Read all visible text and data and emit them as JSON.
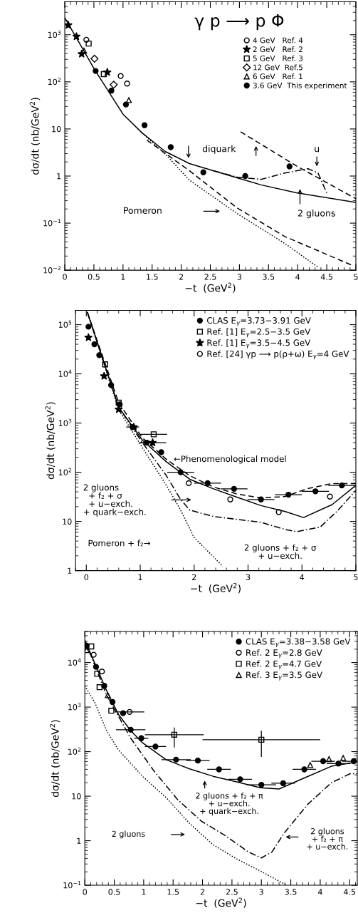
{
  "chart_data": [
    {
      "type": "scatter",
      "xlabel": "−t  (GeV$^{2}$)",
      "ylabel": "dσ/dt (nb/GeV$^{2}$)",
      "log": "y",
      "xlim": [
        0,
        5
      ],
      "ylim": [
        0.01,
        5000
      ],
      "xticks": [
        0,
        0.5,
        1,
        1.5,
        2,
        2.5,
        3,
        3.5,
        4,
        4.5,
        5
      ],
      "yticks": [
        {
          "value": 0.01,
          "label": "10$^{−2}$"
        },
        {
          "value": 0.1,
          "label": "10$^{−1}$"
        },
        1,
        10,
        {
          "value": 100,
          "label": "10$^{2}$"
        },
        {
          "value": 1000,
          "label": "10$^{3}$"
        }
      ],
      "legend": "top right",
      "grid": false,
      "annotations": [
        "γ p ⟶ p Φ",
        "diquark",
        "u",
        "Pomeron",
        "2 gluons"
      ],
      "series": [
        {
          "name": "4 GeV   Ref. 4",
          "marker": "circle",
          "color": "#000000",
          "x": [
            0.37,
            0.96,
            1.07
          ],
          "values": [
            780,
            133,
            92
          ]
        },
        {
          "name": "2 GeV   Ref. 2",
          "marker": "star",
          "color": "#000000",
          "x": [
            0.06,
            0.2,
            0.29,
            0.73
          ],
          "values": [
            1600,
            920,
            390,
            160
          ]
        },
        {
          "name": "5 GeV   Ref. 3",
          "marker": "square",
          "color": "#000000",
          "x": [
            0.41,
            0.67
          ],
          "values": [
            650,
            146
          ]
        },
        {
          "name": "12 GeV  Ref.5",
          "marker": "diamond",
          "color": "#000000",
          "x": [
            0.51,
            0.84
          ],
          "values": [
            310,
            87
          ]
        },
        {
          "name": "6 GeV   Ref. 1",
          "marker": "triangle",
          "color": "#000000",
          "x": [
            0.33,
            1.1
          ],
          "values": [
            460,
            41
          ]
        },
        {
          "name": "3.6 GeV  This experiment",
          "marker": "circle",
          "color": "#000000",
          "x": [
            0.53,
            0.8,
            1.05,
            1.37,
            1.82,
            2.38,
            3.1,
            3.86
          ],
          "values": [
            170,
            65,
            33,
            12,
            4.1,
            1.2,
            1.0,
            1.6
          ]
        },
        {
          "type": "line",
          "line_style": "solid",
          "color": "#000000",
          "x": [
            0,
            0.51,
            1.0,
            1.33,
            1.73,
            2.14,
            2.55,
            2.96,
            3.37,
            3.98,
            5
          ],
          "values": [
            2300,
            184,
            20.6,
            8.2,
            3.3,
            1.84,
            1.3,
            0.92,
            0.65,
            0.44,
            0.275
          ]
        },
        {
          "type": "line",
          "line_style": "dashdot",
          "color": "#000000",
          "x": [
            2.55,
            2.96,
            3.37,
            3.78,
            4.18,
            4.35,
            4.51
          ],
          "values": [
            1.3,
            0.95,
            0.85,
            1.16,
            1.43,
            1.16,
            0.41
          ]
        },
        {
          "type": "line",
          "line_style": "dashed",
          "color": "#000000",
          "x": [
            1.41,
            2.14,
            2.96,
            3.78,
            4.92
          ],
          "values": [
            5.8,
            1.3,
            0.21,
            0.052,
            0.013
          ]
        },
        {
          "type": "line",
          "line_style": "dashed",
          "color": "#000000",
          "x": [
            3.02,
            3.98,
            5
          ],
          "values": [
            8.7,
            1.64,
            0.33
          ]
        },
        {
          "type": "line",
          "line_style": "dotted",
          "color": "#000000",
          "x": [
            1.33,
            1.73,
            2.14,
            2.96,
            3.78,
            4.35
          ],
          "values": [
            8.2,
            2.9,
            0.82,
            0.16,
            0.037,
            0.0116
          ]
        }
      ]
    },
    {
      "type": "scatter",
      "xlabel": "−t  (GeV$^{2}$)",
      "ylabel": "dσ/dt (nb/GeV$^{2}$)",
      "log": "y",
      "xlim": [
        -0.2,
        5
      ],
      "ylim": [
        1,
        195000
      ],
      "xticks": [
        0,
        1,
        2,
        3,
        4,
        5
      ],
      "yticks": [
        1,
        10,
        {
          "value": 100,
          "label": "10$^{2}$"
        },
        {
          "value": 1000,
          "label": "10$^{3}$"
        },
        {
          "value": 10000,
          "label": "10$^{4}$"
        },
        {
          "value": 100000,
          "label": "10$^{5}$"
        }
      ],
      "legend": "top right",
      "grid": false,
      "annotations": [
        "←Phenomenological model",
        "2 gluons\n  + f₂ + σ\n  + u−exch.\n+ quark−exch.",
        "Pomeron + f₂→",
        "2 gluons + f₂ + σ\n+ u−exch."
      ],
      "series": [
        {
          "name": "CLAS E$_{γ}$=3.73−3.91 GeV",
          "marker": "circle",
          "color": "#000000",
          "x": [
            0.04,
            0.15,
            0.24,
            0.46,
            0.62,
            0.86,
            1.12,
            1.39,
            1.75,
            2.25,
            2.74,
            3.24,
            3.75,
            4.25,
            4.74
          ],
          "values": [
            91000,
            40000,
            24000,
            5900,
            2400,
            830,
            400,
            255,
            100,
            60,
            46,
            28,
            35,
            41,
            54
          ],
          "xerrors": [
            null,
            null,
            null,
            null,
            null,
            0.12,
            0.12,
            null,
            0.25,
            0.25,
            0.25,
            0.25,
            0.25,
            0.25,
            0.25
          ]
        },
        {
          "name": "Ref. [1] E$_{γ}$=2.5−3.5 GeV",
          "marker": "square",
          "color": "#000000",
          "x": [
            0.35,
            0.6,
            1.25
          ],
          "values": [
            15600,
            2600,
            590
          ],
          "xerrors": [
            null,
            null,
            0.25
          ]
        },
        {
          "name": "Ref. [1] E$_{γ}$=3.5−4.5 GeV",
          "marker": "star",
          "color": "#000000",
          "x": [
            0.04,
            0.33,
            0.6,
            0.88,
            1.23
          ],
          "values": [
            55000,
            9000,
            1900,
            830,
            400
          ],
          "xerrors": [
            null,
            null,
            null,
            null,
            0.25
          ]
        },
        {
          "name": "Ref. [24] γp ⟶ p(ρ+ω) E$_{γ}$=4 GeV",
          "marker": "circle",
          "color": "#000000",
          "x": [
            1.9,
            2.67,
            3.57,
            4.52
          ],
          "values": [
            60,
            28,
            15.5,
            32
          ]
        },
        {
          "type": "line",
          "line_style": "dashed",
          "color": "#000000",
          "x": [
            0.02,
            0.6,
            1.04,
            1.48,
            1.92,
            2.36,
            2.8,
            3.24,
            3.68,
            4.12,
            4.56,
            5
          ],
          "values": [
            178000,
            2600,
            500,
            185,
            85,
            50,
            36,
            30,
            32,
            47,
            59,
            59
          ]
        },
        {
          "type": "line",
          "line_style": "solid",
          "color": "#000000",
          "x": [
            0.02,
            0.6,
            1.04,
            1.48,
            1.92,
            2.36,
            2.8,
            3.24,
            3.68,
            4.03,
            4.56,
            5
          ],
          "values": [
            178000,
            2100,
            450,
            165,
            72,
            46,
            31,
            21,
            16,
            12,
            22,
            54
          ]
        },
        {
          "type": "line",
          "line_style": "dashdot",
          "color": "#000000",
          "x": [
            0.02,
            0.6,
            1.04,
            1.48,
            1.74,
            1.92,
            2.36,
            2.8,
            3.24,
            3.68,
            3.9,
            4.34,
            4.65,
            5
          ],
          "values": [
            178000,
            2100,
            400,
            87,
            29,
            17,
            12.6,
            11,
            9.6,
            6.9,
            6.2,
            7.7,
            16,
            43
          ]
        },
        {
          "type": "line",
          "line_style": "dotted",
          "color": "#000000",
          "x": [
            0.02,
            0.6,
            1.04,
            1.48,
            1.74,
            2.0,
            2.36,
            2.53
          ],
          "values": [
            178000,
            1860,
            316,
            55,
            17.8,
            4.7,
            1.9,
            1.23
          ]
        }
      ]
    },
    {
      "type": "scatter",
      "xlabel": "−t  (GeV$^{2}$)",
      "ylabel": "dσ/dt (nb/GeV$^{2}$)",
      "log": "y",
      "xlim": [
        0,
        4.63
      ],
      "ylim": [
        0.1,
        50000
      ],
      "xticks": [
        0,
        0.5,
        1,
        1.5,
        2,
        2.5,
        3,
        3.5,
        4,
        4.5
      ],
      "yticks": [
        {
          "value": 0.1,
          "label": "10$^{−1}$"
        },
        1,
        10,
        {
          "value": 100,
          "label": "10$^{2}$"
        },
        {
          "value": 1000,
          "label": "10$^{3}$"
        },
        {
          "value": 10000,
          "label": "10$^{4}$"
        }
      ],
      "legend": "top right",
      "grid": false,
      "annotations": [
        "2 gluons + f₂ + π\n+ u−exch.\n+ quark−exch.",
        "2 gluons",
        "2 gluons\n+ f₂ + π\n+ u−exch."
      ],
      "series": [
        {
          "name": "CLAS E$_{γ}$=3.38−3.58 GeV",
          "marker": "circle",
          "color": "#000000",
          "x": [
            0.03,
            0.19,
            0.33,
            0.47,
            0.65,
            0.78,
            0.96,
            1.2,
            1.55,
            1.92,
            2.28,
            2.64,
            3.0,
            3.37,
            3.73,
            4.05,
            4.31,
            4.57
          ],
          "values": [
            24000,
            8000,
            3000,
            1300,
            730,
            310,
            200,
            130,
            66,
            63,
            40,
            24,
            18,
            19.5,
            40,
            61,
            54,
            61
          ],
          "xerrors": [
            null,
            null,
            null,
            null,
            null,
            0.25,
            0.12,
            0.18,
            0.25,
            0.2,
            0.2,
            0.2,
            0.25,
            0.2,
            0.2,
            0.2,
            0.2,
            [
              4.37,
              4.63
            ]
          ]
        },
        {
          "name": "Ref. 2 E$_{γ}$=2.8 GeV",
          "marker": "circle",
          "color": "#000000",
          "x": [
            0.15,
            0.29,
            0.76
          ],
          "values": [
            15000,
            6300,
            780
          ],
          "xerrors": [
            null,
            null,
            0.25
          ]
        },
        {
          "name": "Ref. 2 E$_{γ}$=4.7 GeV",
          "marker": "square",
          "color": "#000000",
          "x": [
            0.11,
            0.21,
            0.25,
            0.45,
            1.52,
            3.0
          ],
          "values": [
            23000,
            5600,
            2800,
            830,
            240,
            185
          ],
          "xerrors": [
            null,
            null,
            null,
            null,
            0.5,
            1.0
          ],
          "errors": [
            null,
            null,
            null,
            null,
            [
              124,
              347
            ],
            [
              76,
              295
            ]
          ]
        },
        {
          "name": "Ref. 3 E$_{γ}$=3.5 GeV",
          "marker": "triangle",
          "color": "#000000",
          "x": [
            0.03,
            0.39,
            3.83,
            4.15,
            4.39
          ],
          "values": [
            19000,
            1850,
            50,
            68,
            72
          ]
        },
        {
          "type": "line",
          "line_style": "solid",
          "color": "#000000",
          "x": [
            0,
            0.37,
            0.57,
            0.78,
            0.98,
            1.38,
            1.78,
            2.18,
            2.58,
            2.98,
            3.3,
            3.71,
            4.19,
            4.63
          ],
          "values": [
            31600,
            2340,
            690,
            295,
            158,
            66,
            41,
            28,
            21,
            15.5,
            14.5,
            25,
            47,
            59
          ]
        },
        {
          "type": "line",
          "line_style": "dashdot",
          "color": "#000000",
          "x": [
            0,
            0.37,
            0.78,
            1.18,
            1.58,
            1.98,
            2.38,
            2.78,
            3.0,
            3.18,
            3.39,
            3.79,
            4.19,
            4.51,
            4.63
          ],
          "values": [
            31600,
            1860,
            200,
            36,
            8.3,
            2.75,
            1.32,
            0.56,
            0.41,
            0.56,
            1.5,
            6.6,
            20,
            32,
            32
          ]
        },
        {
          "type": "line",
          "line_style": "dotted",
          "color": "#000000",
          "x": [
            0,
            0.17,
            0.37,
            0.57,
            0.98,
            1.38,
            1.78,
            2.18,
            2.58,
            2.98,
            3.43
          ],
          "values": [
            3000,
            1260,
            295,
            110,
            28,
            9.3,
            2.45,
            0.81,
            0.39,
            0.21,
            0.1
          ]
        }
      ]
    }
  ]
}
